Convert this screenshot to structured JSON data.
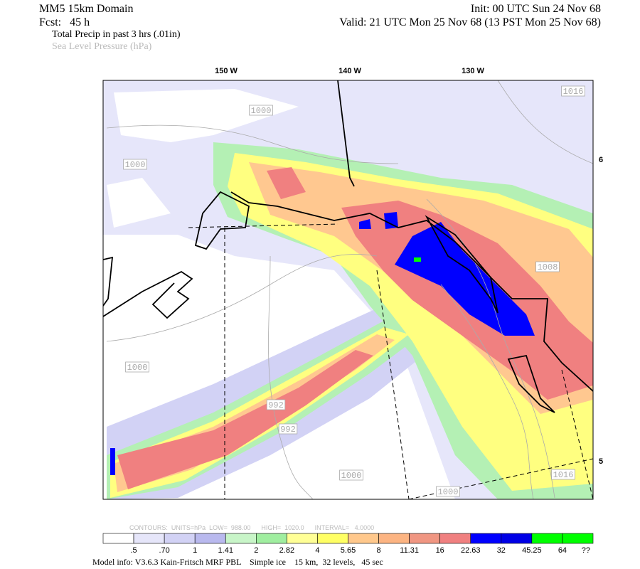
{
  "header": {
    "title": "MM5 15km Domain",
    "init": "Init: 00 UTC Sun 24 Nov 68",
    "forecast": "Fcst:   45 h",
    "valid": "Valid: 21 UTC Mon 25 Nov 68 (13 PST Mon 25 Nov 68)",
    "field_1": "Total Precip in past 3 hrs (.01in)",
    "field_2": "Sea Level Pressure (hPa)"
  },
  "map": {
    "longitude_labels": [
      "150 W",
      "140 W",
      "130 W"
    ],
    "latitude_labels": [
      "6",
      "5"
    ],
    "contour_labels": [
      "1016",
      "1000",
      "1000",
      "1008",
      "1000",
      "992",
      "992",
      "1000",
      "1016",
      "1000"
    ]
  },
  "footer": {
    "contours": "CONTOURS:  UNITS=hPa  LOW=  988.00      HIGH=  1020.0      INTERVAL=   4.0000",
    "colorbar": {
      "colors": [
        "#ffffff",
        "#e6e6fa",
        "#d2d2f5",
        "#b9b9ee",
        "#c8f5c8",
        "#a0eea0",
        "#ffff96",
        "#ffff64",
        "#ffc88c",
        "#fcb482",
        "#f09682",
        "#f08080",
        "#0000ff",
        "#0000e6",
        "#00ff00",
        "#00ff00"
      ],
      "labels": [
        ".5",
        ".70",
        "1",
        "1.41",
        "2",
        "2.82",
        "4",
        "5.65",
        "8",
        "11.31",
        "16",
        "22.63",
        "32",
        "45.25",
        "64",
        "??"
      ]
    },
    "model_info": "Model info: V3.6.3 Kain-Fritsch MRF PBL    Simple ice    15 km,  32 levels,   45 sec"
  }
}
